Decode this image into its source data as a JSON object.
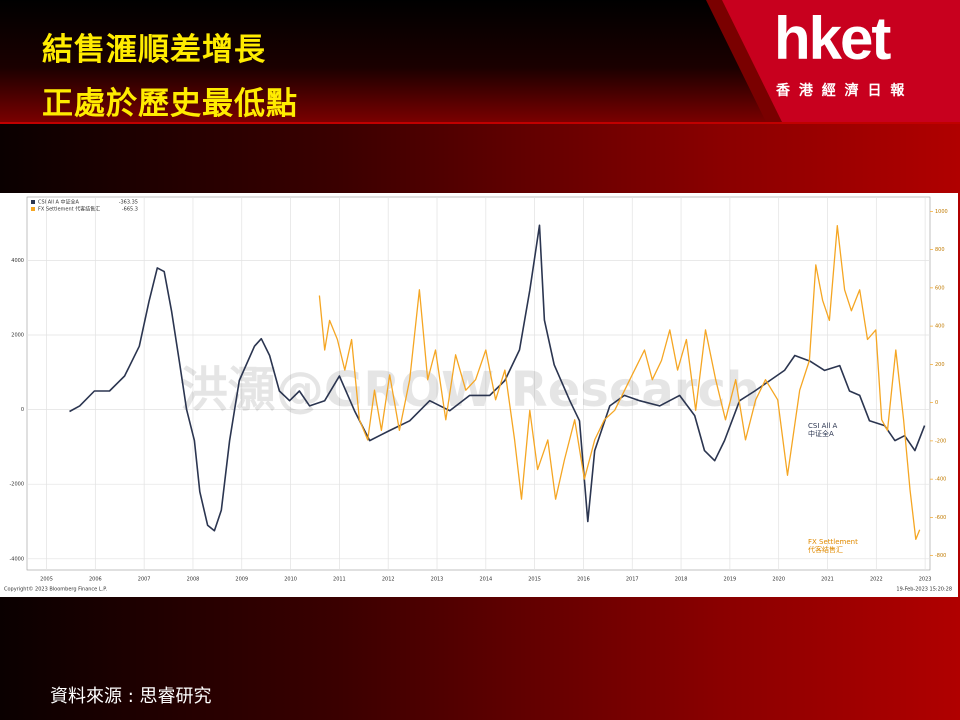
{
  "header": {
    "title_lines": [
      "結售滙順差增長",
      "正處於歷史最低點"
    ],
    "logo": "hket",
    "logo_subtitle": "香 港 經 濟 日 報"
  },
  "chart_data": {
    "type": "line",
    "watermark": "洪灝@GROW Research",
    "xlim": [
      2004.6,
      2023.1
    ],
    "xticks": [
      2005,
      2006,
      2007,
      2008,
      2009,
      2010,
      2011,
      2012,
      2013,
      2014,
      2015,
      2016,
      2017,
      2018,
      2019,
      2020,
      2021,
      2022,
      2023
    ],
    "ylim": [
      -4300,
      5700
    ],
    "yticks": [
      -4000,
      -2000,
      0,
      2000,
      4000
    ],
    "y2lim": [
      -875,
      1075
    ],
    "y2ticks": [
      -800,
      -600,
      -400,
      -200,
      0,
      200,
      400,
      600,
      800,
      1000
    ],
    "grid": true,
    "legend": "upper left",
    "series": [
      {
        "name": "CSI All A 中证全A",
        "legend_value": -363.35,
        "color": "#2b3550",
        "x": [
          2005.47,
          2005.68,
          2005.98,
          2006.29,
          2006.6,
          2006.9,
          2007.1,
          2007.27,
          2007.41,
          2007.56,
          2007.72,
          2007.87,
          2008.03,
          2008.14,
          2008.3,
          2008.44,
          2008.58,
          2008.75,
          2008.95,
          2009.26,
          2009.4,
          2009.57,
          2009.77,
          2009.98,
          2010.18,
          2010.39,
          2010.7,
          2011.0,
          2011.31,
          2011.62,
          2012.03,
          2012.44,
          2012.85,
          2013.26,
          2013.67,
          2014.08,
          2014.39,
          2014.69,
          2014.9,
          2015.1,
          2015.2,
          2015.4,
          2015.72,
          2015.92,
          2016.09,
          2016.23,
          2016.54,
          2016.84,
          2017.15,
          2017.56,
          2017.97,
          2018.28,
          2018.48,
          2018.69,
          2018.89,
          2019.2,
          2019.51,
          2019.82,
          2020.12,
          2020.33,
          2020.64,
          2020.94,
          2021.25,
          2021.45,
          2021.66,
          2021.86,
          2022.17,
          2022.38,
          2022.58,
          2022.79,
          2022.99
        ],
        "values": [
          -50,
          100,
          500,
          500,
          900,
          1700,
          2900,
          3800,
          3700,
          2650,
          1300,
          0,
          -830,
          -2200,
          -3100,
          -3250,
          -2700,
          -830,
          780,
          1700,
          1900,
          1450,
          500,
          240,
          500,
          100,
          240,
          900,
          -30,
          -830,
          -560,
          -300,
          240,
          -30,
          380,
          380,
          780,
          1600,
          3200,
          4940,
          2400,
          1200,
          240,
          -300,
          -3000,
          -1100,
          100,
          380,
          240,
          100,
          380,
          -160,
          -1100,
          -1370,
          -830,
          240,
          500,
          780,
          1050,
          1450,
          1300,
          1050,
          1180,
          500,
          380,
          -300,
          -430,
          -830,
          -700,
          -1100,
          -430
        ]
      },
      {
        "name": "FX Settlement 代客结售汇",
        "legend_value": -665.3,
        "color": "#f5a623",
        "axis": "y2",
        "x": [
          2010.59,
          2010.7,
          2010.8,
          2010.96,
          2011.11,
          2011.25,
          2011.41,
          2011.58,
          2011.72,
          2011.86,
          2012.03,
          2012.23,
          2012.44,
          2012.64,
          2012.81,
          2012.97,
          2013.18,
          2013.38,
          2013.59,
          2013.79,
          2014.0,
          2014.2,
          2014.39,
          2014.59,
          2014.73,
          2014.9,
          2015.06,
          2015.27,
          2015.43,
          2015.61,
          2015.82,
          2016.02,
          2016.23,
          2016.43,
          2016.64,
          2017.25,
          2017.41,
          2017.6,
          2017.77,
          2017.93,
          2018.11,
          2018.3,
          2018.5,
          2018.71,
          2018.91,
          2019.12,
          2019.32,
          2019.53,
          2019.73,
          2019.98,
          2020.18,
          2020.43,
          2020.63,
          2020.76,
          2020.9,
          2021.04,
          2021.2,
          2021.35,
          2021.49,
          2021.66,
          2021.82,
          2021.99,
          2022.11,
          2022.23,
          2022.4,
          2022.56,
          2022.69,
          2022.81,
          2022.89
        ],
        "values": [
          560,
          275,
          430,
          330,
          170,
          330,
          -90,
          -195,
          65,
          -145,
          145,
          -145,
          120,
          590,
          120,
          275,
          -90,
          250,
          65,
          120,
          275,
          15,
          170,
          -195,
          -505,
          -40,
          -350,
          -195,
          -505,
          -300,
          -90,
          -400,
          -195,
          -90,
          -40,
          275,
          120,
          220,
          380,
          170,
          330,
          -40,
          380,
          120,
          -90,
          120,
          -195,
          15,
          120,
          15,
          -380,
          65,
          220,
          720,
          535,
          430,
          925,
          590,
          480,
          590,
          330,
          380,
          -90,
          -145,
          275,
          -90,
          -455,
          -715,
          -665
        ]
      }
    ],
    "annotations": [
      {
        "lines": [
          "CSI All A",
          "中证全A"
        ]
      },
      {
        "lines": [
          "FX Settlement",
          "代客结售汇"
        ]
      }
    ],
    "footer_left": "Copyright© 2023 Bloomberg Finance L.P.",
    "footer_right": "19-Feb-2023 15:20:28"
  },
  "source": "資料來源 : 思睿研究"
}
